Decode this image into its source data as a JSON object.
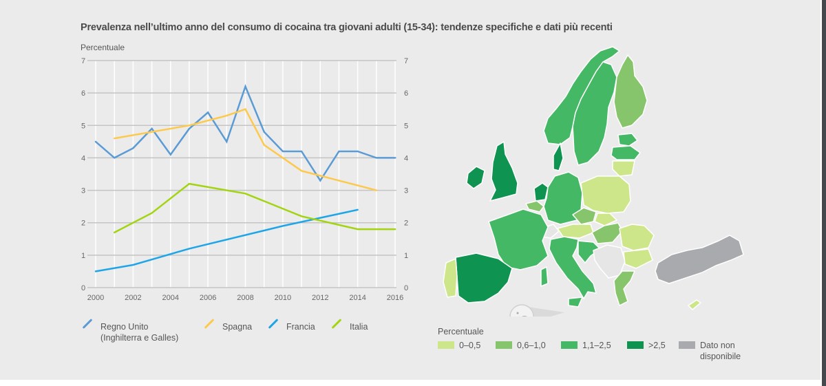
{
  "title": "Prevalenza nell’ultimo anno del consumo di cocaina tra giovani adulti (15-34): tendenze specifiche e dati più recenti",
  "chart_data": {
    "type": "line",
    "title": "Prevalenza nell’ultimo anno del consumo di cocaina tra giovani adulti (15-34): tendenze specifiche e dati più recenti",
    "ylabel": "Percentuale",
    "xlabel": "",
    "ylim": [
      0,
      7
    ],
    "yticks": [
      "0",
      "1",
      "2",
      "3",
      "4",
      "5",
      "6",
      "7"
    ],
    "xlim": [
      2000,
      2016
    ],
    "xticks": [
      "2000",
      "2002",
      "2004",
      "2006",
      "2008",
      "2010",
      "2012",
      "2014",
      "2016"
    ],
    "grid": true,
    "legend_position": "bottom",
    "series": [
      {
        "name": "Regno Unito (Inghilterra e Galles)",
        "name_lines": [
          "Regno Unito",
          "(Inghilterra e Galles)"
        ],
        "color": "#5b9bd5",
        "x": [
          2000,
          2001,
          2002,
          2003,
          2004,
          2005,
          2006,
          2007,
          2008,
          2009,
          2010,
          2011,
          2012,
          2013,
          2014,
          2015,
          2016
        ],
        "values": [
          4.5,
          4.0,
          4.3,
          4.9,
          4.1,
          4.9,
          5.4,
          4.5,
          6.2,
          4.8,
          4.2,
          4.2,
          3.3,
          4.2,
          4.2,
          4.0,
          4.0
        ]
      },
      {
        "name": "Spagna",
        "name_lines": [
          "Spagna"
        ],
        "color": "#fdc94d",
        "x": [
          2001,
          2003,
          2005,
          2007,
          2008,
          2009,
          2011,
          2013,
          2015
        ],
        "values": [
          4.6,
          4.8,
          5.0,
          5.3,
          5.5,
          4.4,
          3.6,
          3.3,
          3.0
        ]
      },
      {
        "name": "Francia",
        "name_lines": [
          "Francia"
        ],
        "color": "#1ea5e8",
        "x": [
          2000,
          2002,
          2005,
          2010,
          2014
        ],
        "values": [
          0.5,
          0.7,
          1.2,
          1.9,
          2.4
        ]
      },
      {
        "name": "Italia",
        "name_lines": [
          "Italia"
        ],
        "color": "#a3d411",
        "x": [
          2001,
          2003,
          2005,
          2008,
          2011,
          2014,
          2016
        ],
        "values": [
          1.7,
          2.3,
          3.2,
          2.9,
          2.2,
          1.8,
          1.8
        ]
      }
    ]
  },
  "map": {
    "legend_title": "Percentuale",
    "classes": [
      {
        "label": "0–0,5",
        "color": "#cde68a"
      },
      {
        "label": "0,6–1,0",
        "color": "#86c56b"
      },
      {
        "label": "1,1–2,5",
        "color": "#45b865"
      },
      {
        "label": ">2,5",
        "color": "#0e9450"
      },
      {
        "label_lines": [
          "Dato non",
          "disponibile"
        ],
        "label": "Dato non disponibile",
        "color": "#a9aaad"
      }
    ],
    "countries": [
      {
        "name": "Irlanda",
        "class": ">2,5"
      },
      {
        "name": "Regno Unito",
        "class": ">2,5"
      },
      {
        "name": "Paesi Bassi",
        "class": ">2,5"
      },
      {
        "name": "Danimarca",
        "class": ">2,5"
      },
      {
        "name": "Spagna",
        "class": ">2,5"
      },
      {
        "name": "Norvegia",
        "class": "1,1–2,5"
      },
      {
        "name": "Svezia",
        "class": "1,1–2,5"
      },
      {
        "name": "Estonia",
        "class": "1,1–2,5"
      },
      {
        "name": "Lettonia",
        "class": "1,1–2,5"
      },
      {
        "name": "Germania",
        "class": "1,1–2,5"
      },
      {
        "name": "Francia",
        "class": "1,1–2,5"
      },
      {
        "name": "Italia",
        "class": "1,1–2,5"
      },
      {
        "name": "Croazia",
        "class": "1,1–2,5"
      },
      {
        "name": "Slovenia",
        "class": "1,1–2,5"
      },
      {
        "name": "Finlandia",
        "class": "0,6–1,0"
      },
      {
        "name": "Belgio",
        "class": "0,6–1,0"
      },
      {
        "name": "Cechia",
        "class": "0,6–1,0"
      },
      {
        "name": "Ungheria",
        "class": "0,6–1,0"
      },
      {
        "name": "Grecia",
        "class": "0,6–1,0"
      },
      {
        "name": "Lituania",
        "class": "0–0,5"
      },
      {
        "name": "Polonia",
        "class": "0–0,5"
      },
      {
        "name": "Slovacchia",
        "class": "0–0,5"
      },
      {
        "name": "Austria",
        "class": "0–0,5"
      },
      {
        "name": "Romania",
        "class": "0–0,5"
      },
      {
        "name": "Bulgaria",
        "class": "0–0,5"
      },
      {
        "name": "Portogallo",
        "class": "0–0,5"
      },
      {
        "name": "Cipro",
        "class": "0–0,5"
      },
      {
        "name": "Turchia",
        "class": "Dato non disponibile"
      }
    ]
  }
}
